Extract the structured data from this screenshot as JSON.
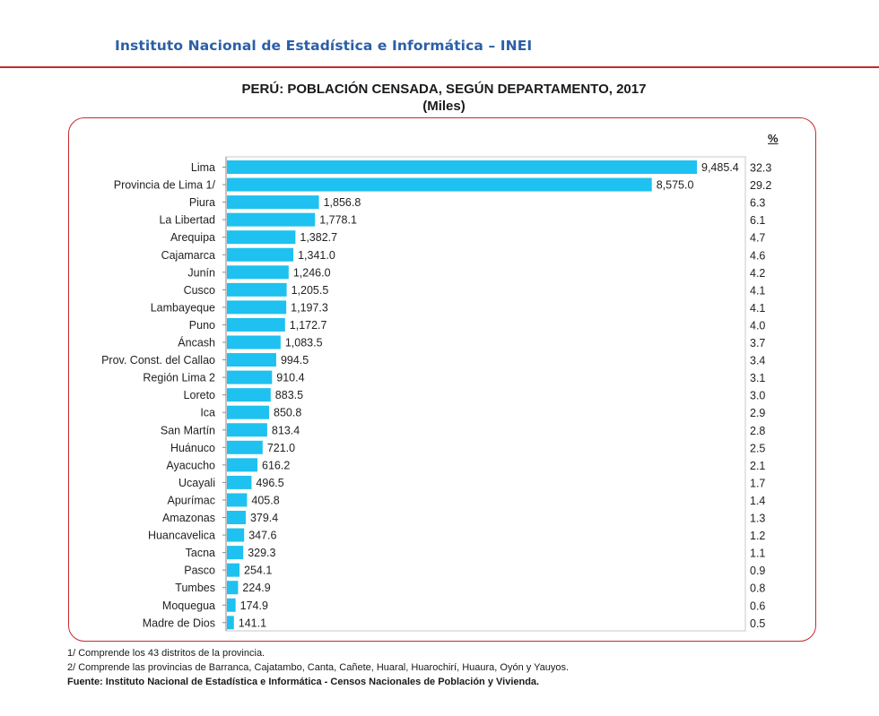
{
  "header": {
    "institution": "Instituto Nacional de Estadística e Informática – INEI"
  },
  "colors": {
    "bar": "#1ec1ef",
    "accent_red": "#c9282d",
    "header_blue": "#2b5fa8"
  },
  "chart_data": {
    "type": "bar",
    "orientation": "horizontal",
    "title": "PERÚ: POBLACIÓN CENSADA, SEGÚN DEPARTAMENTO, 2017",
    "subtitle": "(Miles)",
    "percent_header": "%",
    "categories": [
      "Lima",
      "Provincia de Lima 1/",
      "Piura",
      "La Libertad",
      "Arequipa",
      "Cajamarca",
      "Junín",
      "Cusco",
      "Lambayeque",
      "Puno",
      "Áncash",
      "Prov. Const. del Callao",
      "Región Lima 2",
      "Loreto",
      "Ica",
      "San Martín",
      "Huánuco",
      "Ayacucho",
      "Ucayali",
      "Apurímac",
      "Amazonas",
      "Huancavelica",
      "Tacna",
      "Pasco",
      "Tumbes",
      "Moquegua",
      "Madre de Dios"
    ],
    "values": [
      9485.4,
      8575.0,
      1856.8,
      1778.1,
      1382.7,
      1341.0,
      1246.0,
      1205.5,
      1197.3,
      1172.7,
      1083.5,
      994.5,
      910.4,
      883.5,
      850.8,
      813.4,
      721.0,
      616.2,
      496.5,
      405.8,
      379.4,
      347.6,
      329.3,
      254.1,
      224.9,
      174.9,
      141.1
    ],
    "value_labels": [
      "9,485.4",
      "8,575.0",
      "1,856.8",
      "1,778.1",
      "1,382.7",
      "1,341.0",
      "1,246.0",
      "1,205.5",
      "1,197.3",
      "1,172.7",
      "1,083.5",
      "994.5",
      "910.4",
      "883.5",
      "850.8",
      "813.4",
      "721.0",
      "616.2",
      "496.5",
      "405.8",
      "379.4",
      "347.6",
      "329.3",
      "254.1",
      "224.9",
      "174.9",
      "141.1"
    ],
    "percentages": [
      "32.3",
      "29.2",
      "6.3",
      "6.1",
      "4.7",
      "4.6",
      "4.2",
      "4.1",
      "4.1",
      "4.0",
      "3.7",
      "3.4",
      "3.1",
      "3.0",
      "2.9",
      "2.8",
      "2.5",
      "2.1",
      "1.7",
      "1.4",
      "1.3",
      "1.2",
      "1.1",
      "0.9",
      "0.8",
      "0.6",
      "0.5"
    ],
    "grid": false,
    "legend": "none"
  },
  "footnotes": [
    "1/ Comprende los 43 distritos de la provincia.",
    "2/ Comprende las provincias de Barranca, Cajatambo, Canta, Cañete, Huaral, Huarochirí, Huaura, Oyón y Yauyos."
  ],
  "source": "Fuente: Instituto Nacional de Estadística e Informática - Censos Nacionales de Población y Vivienda."
}
